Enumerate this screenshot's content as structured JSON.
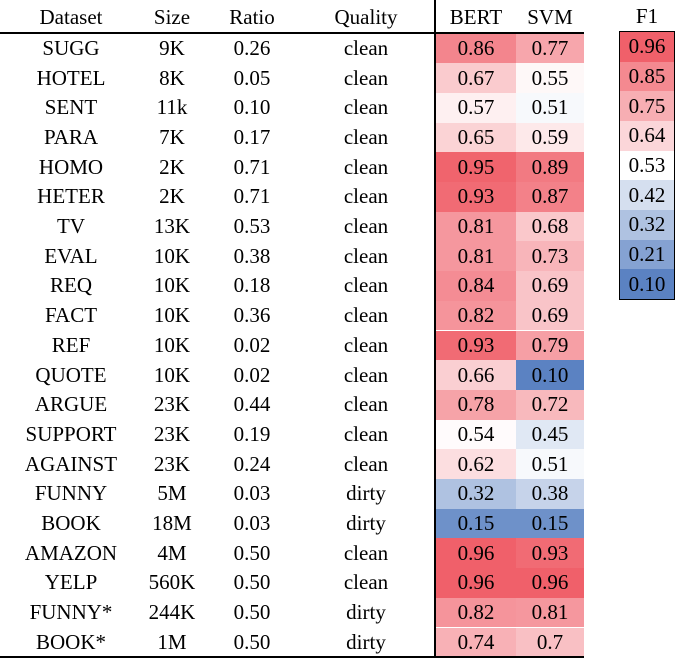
{
  "table": {
    "headers": {
      "dataset": "Dataset",
      "size": "Size",
      "ratio": "Ratio",
      "quality": "Quality",
      "bert": "BERT",
      "svm": "SVM"
    },
    "rows": [
      {
        "dataset": "SUGG",
        "size": "9K",
        "ratio": "0.26",
        "quality": "clean",
        "bert": "0.86",
        "svm": "0.77"
      },
      {
        "dataset": "HOTEL",
        "size": "8K",
        "ratio": "0.05",
        "quality": "clean",
        "bert": "0.67",
        "svm": "0.55"
      },
      {
        "dataset": "SENT",
        "size": "11k",
        "ratio": "0.10",
        "quality": "clean",
        "bert": "0.57",
        "svm": "0.51"
      },
      {
        "dataset": "PARA",
        "size": "7K",
        "ratio": "0.17",
        "quality": "clean",
        "bert": "0.65",
        "svm": "0.59"
      },
      {
        "dataset": "HOMO",
        "size": "2K",
        "ratio": "0.71",
        "quality": "clean",
        "bert": "0.95",
        "svm": "0.89"
      },
      {
        "dataset": "HETER",
        "size": "2K",
        "ratio": "0.71",
        "quality": "clean",
        "bert": "0.93",
        "svm": "0.87"
      },
      {
        "dataset": "TV",
        "size": "13K",
        "ratio": "0.53",
        "quality": "clean",
        "bert": "0.81",
        "svm": "0.68"
      },
      {
        "dataset": "EVAL",
        "size": "10K",
        "ratio": "0.38",
        "quality": "clean",
        "bert": "0.81",
        "svm": "0.73"
      },
      {
        "dataset": "REQ",
        "size": "10K",
        "ratio": "0.18",
        "quality": "clean",
        "bert": "0.84",
        "svm": "0.69"
      },
      {
        "dataset": "FACT",
        "size": "10K",
        "ratio": "0.36",
        "quality": "clean",
        "bert": "0.82",
        "svm": "0.69"
      },
      {
        "dataset": "REF",
        "size": "10K",
        "ratio": "0.02",
        "quality": "clean",
        "bert": "0.93",
        "svm": "0.79"
      },
      {
        "dataset": "QUOTE",
        "size": "10K",
        "ratio": "0.02",
        "quality": "clean",
        "bert": "0.66",
        "svm": "0.10"
      },
      {
        "dataset": "ARGUE",
        "size": "23K",
        "ratio": "0.44",
        "quality": "clean",
        "bert": "0.78",
        "svm": "0.72"
      },
      {
        "dataset": "SUPPORT",
        "size": "23K",
        "ratio": "0.19",
        "quality": "clean",
        "bert": "0.54",
        "svm": "0.45"
      },
      {
        "dataset": "AGAINST",
        "size": "23K",
        "ratio": "0.24",
        "quality": "clean",
        "bert": "0.62",
        "svm": "0.51"
      },
      {
        "dataset": "FUNNY",
        "size": "5M",
        "ratio": "0.03",
        "quality": "dirty",
        "bert": "0.32",
        "svm": "0.38"
      },
      {
        "dataset": "BOOK",
        "size": "18M",
        "ratio": "0.03",
        "quality": "dirty",
        "bert": "0.15",
        "svm": "0.15"
      },
      {
        "dataset": "AMAZON",
        "size": "4M",
        "ratio": "0.50",
        "quality": "clean",
        "bert": "0.96",
        "svm": "0.93"
      },
      {
        "dataset": "YELP",
        "size": "560K",
        "ratio": "0.50",
        "quality": "clean",
        "bert": "0.96",
        "svm": "0.96"
      },
      {
        "dataset": "FUNNY*",
        "size": "244K",
        "ratio": "0.50",
        "quality": "dirty",
        "bert": "0.82",
        "svm": "0.81"
      },
      {
        "dataset": "BOOK*",
        "size": "1M",
        "ratio": "0.50",
        "quality": "dirty",
        "bert": "0.74",
        "svm": "0.7"
      }
    ]
  },
  "legend": {
    "title": "F1",
    "ticks": [
      "0.96",
      "0.85",
      "0.75",
      "0.64",
      "0.53",
      "0.42",
      "0.32",
      "0.21",
      "0.10"
    ]
  },
  "colors": {
    "high": "#f0606a",
    "mid": "#ffffff",
    "low": "#5b82c2"
  }
}
